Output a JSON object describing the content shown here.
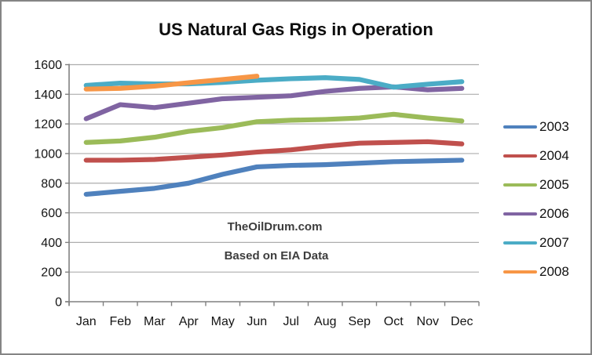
{
  "chart_data": {
    "type": "line",
    "title": "US Natural Gas Rigs in Operation",
    "categories": [
      "Jan",
      "Feb",
      "Mar",
      "Apr",
      "May",
      "Jun",
      "Jul",
      "Aug",
      "Sep",
      "Oct",
      "Nov",
      "Dec"
    ],
    "xlabel": "",
    "ylabel": "",
    "ylim": [
      0,
      1600
    ],
    "y_tick_step": 200,
    "grid": true,
    "legend_position": "right",
    "series": [
      {
        "name": "2003",
        "color": "#4F81BD",
        "values": [
          725,
          745,
          765,
          800,
          860,
          910,
          920,
          925,
          935,
          945,
          950,
          955
        ]
      },
      {
        "name": "2004",
        "color": "#C0504D",
        "values": [
          955,
          955,
          960,
          975,
          990,
          1010,
          1025,
          1050,
          1070,
          1075,
          1080,
          1065
        ]
      },
      {
        "name": "2005",
        "color": "#9BBB59",
        "values": [
          1075,
          1085,
          1110,
          1150,
          1175,
          1215,
          1225,
          1230,
          1240,
          1265,
          1240,
          1220
        ]
      },
      {
        "name": "2006",
        "color": "#8064A2",
        "values": [
          1235,
          1330,
          1310,
          1340,
          1370,
          1380,
          1390,
          1420,
          1440,
          1450,
          1430,
          1440
        ]
      },
      {
        "name": "2007",
        "color": "#4BACC6",
        "values": [
          1460,
          1475,
          1470,
          1470,
          1480,
          1495,
          1505,
          1512,
          1500,
          1448,
          1468,
          1485
        ]
      },
      {
        "name": "2008",
        "color": "#F79646",
        "values": [
          1435,
          1440,
          1455,
          1478,
          1500,
          1522
        ]
      }
    ],
    "axis_color": "#808080",
    "gridline_color": "#ADADAD",
    "tick_label_color": "#141414"
  },
  "annotations": {
    "site": {
      "text": "TheOilDrum.com"
    },
    "source": {
      "text": "Based on EIA Data"
    }
  }
}
